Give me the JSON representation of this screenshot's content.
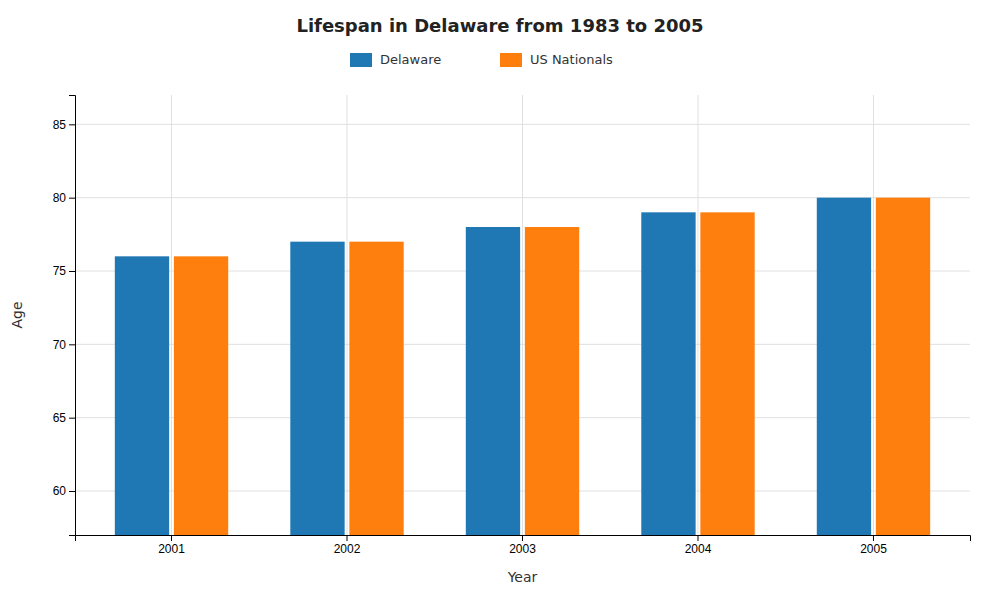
{
  "chart_data": {
    "type": "bar",
    "title": "Lifespan in Delaware from 1983 to 2005",
    "xlabel": "Year",
    "ylabel": "Age",
    "categories": [
      "2001",
      "2002",
      "2003",
      "2004",
      "2005"
    ],
    "series": [
      {
        "name": "Delaware",
        "values": [
          76,
          77,
          78,
          79,
          80
        ]
      },
      {
        "name": "US Nationals",
        "values": [
          76,
          77,
          78,
          79,
          80
        ]
      }
    ],
    "ylim": [
      57,
      87
    ],
    "yticks": [
      60,
      65,
      70,
      75,
      80,
      85
    ],
    "grid": true,
    "legend": "top"
  }
}
